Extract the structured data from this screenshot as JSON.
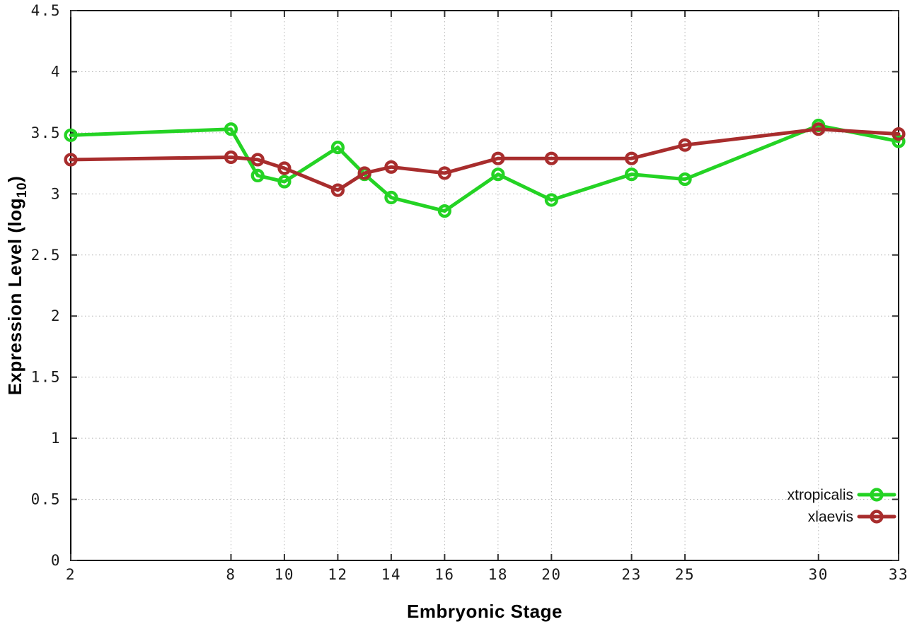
{
  "chart_data": {
    "type": "line",
    "title": "",
    "xlabel": "Embryonic Stage",
    "ylabel": "Expression Level (log10)",
    "ylabel_parts": {
      "main": "Expression Level (log",
      "sub": "10",
      "end": ")"
    },
    "x": [
      2,
      8,
      9,
      10,
      12,
      13,
      14,
      16,
      18,
      20,
      23,
      25,
      30,
      33
    ],
    "series": [
      {
        "name": "xtropicalis",
        "color": "#24d324",
        "marker": "open-circle",
        "values": [
          3.48,
          3.53,
          3.15,
          3.1,
          3.38,
          3.16,
          2.97,
          2.86,
          3.16,
          2.95,
          3.16,
          3.12,
          3.56,
          3.43
        ]
      },
      {
        "name": "xlaevis",
        "color": "#a82d2d",
        "marker": "open-circle",
        "values": [
          3.28,
          3.3,
          3.28,
          3.21,
          3.03,
          3.17,
          3.22,
          3.17,
          3.29,
          3.29,
          3.29,
          3.4,
          3.53,
          3.49
        ]
      }
    ],
    "xlim": [
      2,
      33
    ],
    "ylim": [
      0,
      4.5
    ],
    "xticks": [
      2,
      8,
      10,
      12,
      14,
      16,
      18,
      20,
      23,
      25,
      30,
      33
    ],
    "xtick_labels": [
      "2",
      "8",
      "10",
      "12",
      "14",
      "16",
      "18",
      "20",
      "23",
      "25",
      "30",
      "33"
    ],
    "yticks": [
      0,
      0.5,
      1,
      1.5,
      2,
      2.5,
      3,
      3.5,
      4,
      4.5
    ],
    "ytick_labels": [
      "0",
      "0.5",
      "1",
      "1.5",
      "2",
      "2.5",
      "3",
      "3.5",
      "4",
      "4.5"
    ],
    "grid": true,
    "legend_position": "inside-bottom-right",
    "legend_entries": [
      "xtropicalis",
      "xlaevis"
    ]
  },
  "style": {
    "background_color": "#ffffff",
    "border_color": "#000000",
    "grid_color": "#b5b5b5",
    "tick_color": "#333333",
    "green_series_color": "#24d324",
    "red_series_color": "#a82d2d"
  }
}
